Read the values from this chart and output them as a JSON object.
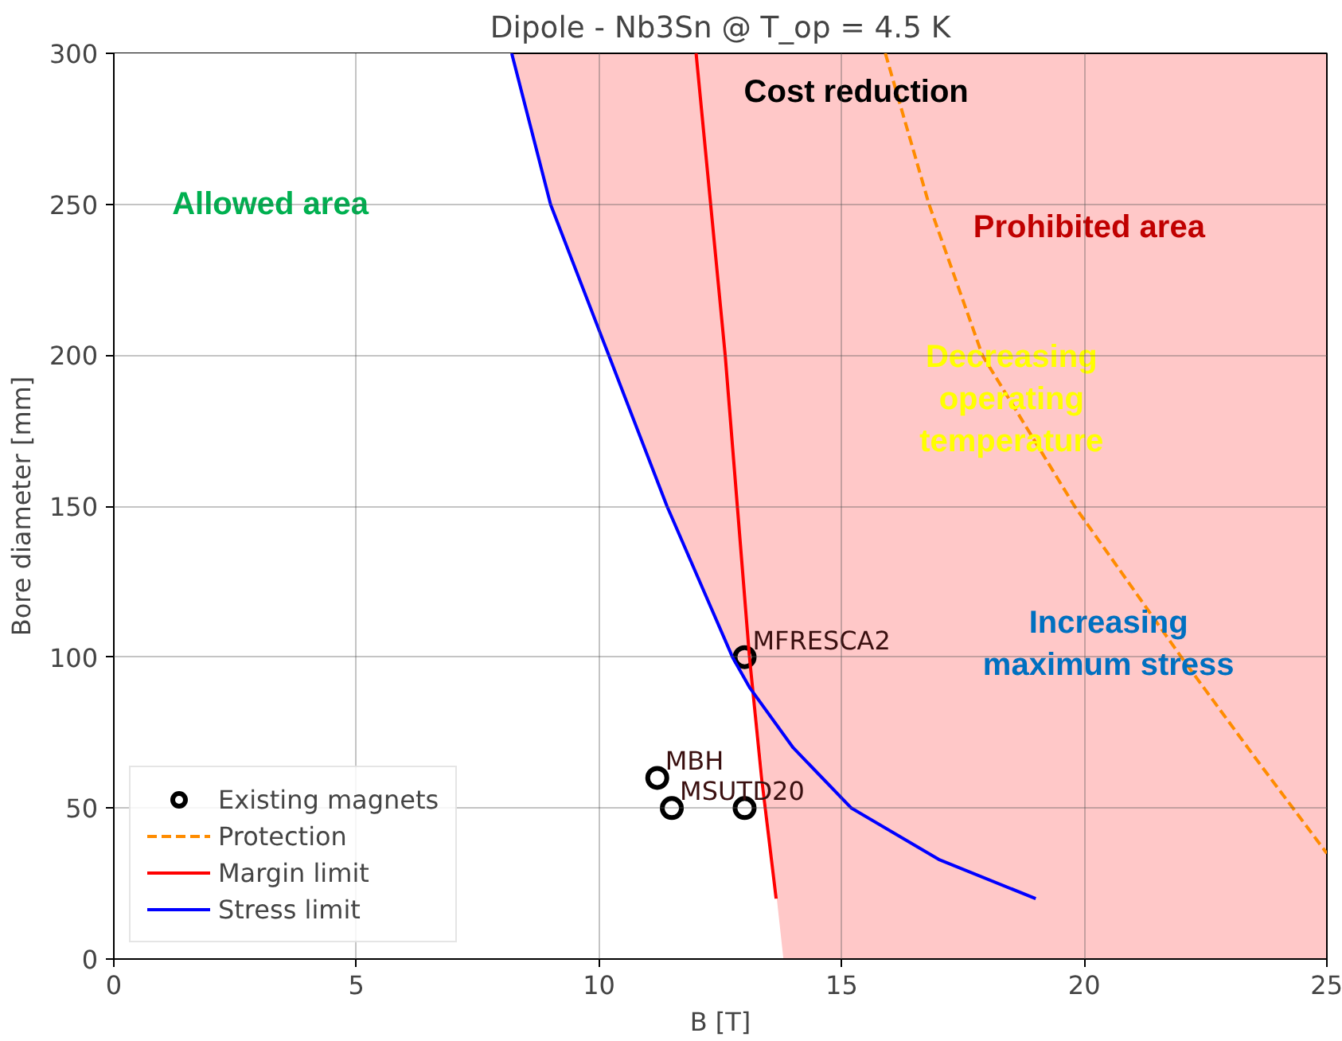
{
  "chart_data": {
    "type": "line",
    "title": "Dipole - Nb3Sn @ T_op = 4.5 K",
    "xlabel": "B [T]",
    "ylabel": "Bore diameter [mm]",
    "xlim": [
      0,
      25
    ],
    "ylim": [
      0,
      300
    ],
    "xticks": [
      0,
      5,
      10,
      15,
      20,
      25
    ],
    "yticks": [
      0,
      50,
      100,
      150,
      200,
      250,
      300
    ],
    "grid": true,
    "legend": "bottom left",
    "series": [
      {
        "type": "area",
        "color": "#ffffff",
        "x": [
          0.0,
          8.2,
          9.0,
          10.2,
          11.4,
          12.75,
          13.2,
          13.8
        ],
        "values": [
          300,
          300,
          250,
          200,
          150,
          100,
          88,
          0
        ]
      },
      {
        "name": "Existing magnets",
        "type": "scatter",
        "marker": "circle",
        "color": "#000000",
        "x": [
          13.0,
          11.2,
          11.5,
          13.0
        ],
        "values": [
          100,
          60,
          50,
          50
        ]
      },
      {
        "name": "Protection",
        "line_style": "dashed",
        "color": "#ff8c00",
        "x": [
          15.9,
          16.8,
          17.9,
          19.8,
          22.0,
          23.6,
          25.0
        ],
        "values": [
          300,
          250,
          200,
          150,
          100,
          65,
          35
        ]
      },
      {
        "name": "Margin limit",
        "line_style": "solid",
        "color": "#ff0000",
        "x": [
          12.0,
          12.3,
          12.6,
          12.85,
          13.1,
          13.35,
          13.65
        ],
        "values": [
          300,
          250,
          200,
          150,
          100,
          60,
          20
        ]
      },
      {
        "name": "Stress limit",
        "line_style": "solid",
        "color": "#0000ff",
        "x": [
          8.2,
          9.0,
          10.2,
          11.4,
          12.75,
          13.1,
          14.0,
          15.2,
          17.0,
          19.0
        ],
        "values": [
          300,
          250,
          200,
          150,
          100,
          90,
          70,
          50,
          33,
          20
        ]
      }
    ],
    "annotations": [
      {
        "text": "MFRESCA2",
        "x": 13.0,
        "y": 100
      },
      {
        "text": "MBH",
        "x": 11.2,
        "y": 60
      },
      {
        "text": "MSUT",
        "x": 11.5,
        "y": 50
      },
      {
        "text": "D20",
        "x": 13.0,
        "y": 50
      },
      "Allowed area",
      "Prohibited area",
      "Cost reduction",
      "Decreasing\noperating\ntemperature",
      "Increasing\nmaximum stress"
    ]
  }
}
